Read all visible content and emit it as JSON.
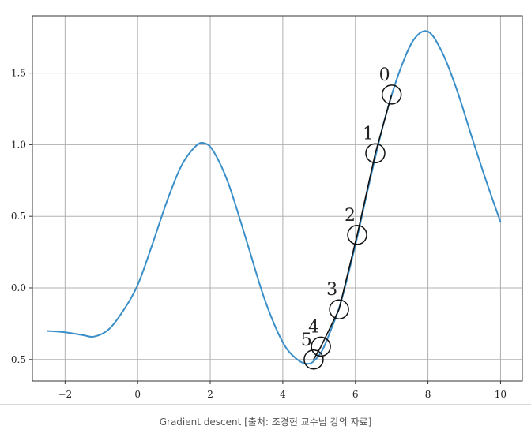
{
  "caption": "Gradient descent [출처: 조경현 교수님 강의 자료]",
  "colors": {
    "curve": "#3a8fc8",
    "path": "#111111",
    "grid": "#b0b0b0",
    "frame": "#333333"
  },
  "chart_data": {
    "type": "line",
    "title": "",
    "xlabel": "",
    "ylabel": "",
    "xlim": [
      -2.9,
      10.6
    ],
    "ylim": [
      -0.65,
      1.9
    ],
    "grid": true,
    "xticks": [
      -2,
      0,
      2,
      4,
      6,
      8,
      10
    ],
    "xtick_labels": [
      "−2",
      "0",
      "2",
      "4",
      "6",
      "8",
      "10"
    ],
    "yticks": [
      -0.5,
      0.0,
      0.5,
      1.0,
      1.5
    ],
    "ytick_labels": [
      "-0.5",
      "0.0",
      "0.5",
      "1.0",
      "1.5"
    ],
    "series": [
      {
        "x": [
          -2.5,
          -2.0,
          -1.5,
          -1.2,
          -0.8,
          -0.4,
          0.0,
          0.4,
          0.8,
          1.2,
          1.6,
          1.85,
          2.1,
          2.5,
          3.0,
          3.5,
          4.0,
          4.4,
          4.7,
          4.9,
          5.1,
          5.3,
          5.6,
          6.0,
          6.4,
          6.8,
          7.2,
          7.6,
          8.0,
          8.4,
          8.8,
          9.2,
          9.6,
          10.0
        ],
        "y": [
          -0.3,
          -0.31,
          -0.33,
          -0.34,
          -0.29,
          -0.16,
          0.02,
          0.3,
          0.6,
          0.85,
          0.99,
          1.01,
          0.95,
          0.73,
          0.33,
          -0.08,
          -0.38,
          -0.5,
          -0.53,
          -0.5,
          -0.43,
          -0.31,
          -0.1,
          0.3,
          0.75,
          1.17,
          1.5,
          1.73,
          1.79,
          1.64,
          1.38,
          1.06,
          0.75,
          0.46
        ]
      }
    ],
    "steps": [
      {
        "label": "0",
        "x": 7.0,
        "y": 1.35
      },
      {
        "label": "1",
        "x": 6.55,
        "y": 0.94
      },
      {
        "label": "2",
        "x": 6.05,
        "y": 0.37
      },
      {
        "label": "3",
        "x": 5.55,
        "y": -0.15
      },
      {
        "label": "4",
        "x": 5.05,
        "y": -0.41
      },
      {
        "label": "5",
        "x": 4.85,
        "y": -0.5
      }
    ]
  }
}
